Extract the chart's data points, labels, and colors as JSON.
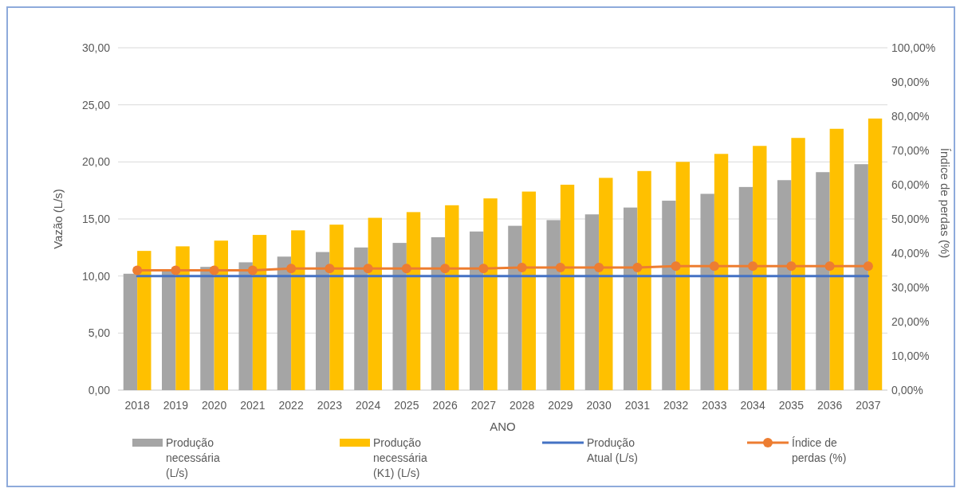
{
  "chart_data": {
    "type": "bar",
    "xlabel": "ANO",
    "ylabel": "Vazão (L/s)",
    "y2label": "Índice de perdas (%)",
    "categories": [
      "2018",
      "2019",
      "2020",
      "2021",
      "2022",
      "2023",
      "2024",
      "2025",
      "2026",
      "2027",
      "2028",
      "2029",
      "2030",
      "2031",
      "2032",
      "2033",
      "2034",
      "2035",
      "2036",
      "2037"
    ],
    "ylim": [
      0,
      30
    ],
    "yticks": [
      {
        "value": 0,
        "label": "0,00"
      },
      {
        "value": 5,
        "label": "5,00"
      },
      {
        "value": 10,
        "label": "10,00"
      },
      {
        "value": 15,
        "label": "15,00"
      },
      {
        "value": 20,
        "label": "20,00"
      },
      {
        "value": 25,
        "label": "25,00"
      },
      {
        "value": 30,
        "label": "30,00"
      }
    ],
    "y2lim": [
      0,
      100
    ],
    "y2ticks": [
      {
        "value": 0,
        "label": "0,00%"
      },
      {
        "value": 10,
        "label": "10,00%"
      },
      {
        "value": 20,
        "label": "20,00%"
      },
      {
        "value": 30,
        "label": "30,00%"
      },
      {
        "value": 40,
        "label": "40,00%"
      },
      {
        "value": 50,
        "label": "50,00%"
      },
      {
        "value": 60,
        "label": "60,00%"
      },
      {
        "value": 70,
        "label": "70,00%"
      },
      {
        "value": 80,
        "label": "80,00%"
      },
      {
        "value": 90,
        "label": "90,00%"
      },
      {
        "value": 100,
        "label": "100,00%"
      }
    ],
    "grid": "y",
    "legend": "bottom",
    "series": [
      {
        "name": "Produção necessária (L/s)",
        "color": "#a5a5a5",
        "values": [
          10.2,
          10.5,
          10.8,
          11.2,
          11.7,
          12.1,
          12.5,
          12.9,
          13.4,
          13.9,
          14.4,
          14.9,
          15.4,
          16.0,
          16.6,
          17.2,
          17.8,
          18.4,
          19.1,
          19.8
        ]
      },
      {
        "name": "Produção necessária (K1) (L/s)",
        "color": "#ffc000",
        "values": [
          12.2,
          12.6,
          13.1,
          13.6,
          14.0,
          14.5,
          15.1,
          15.6,
          16.2,
          16.8,
          17.4,
          18.0,
          18.6,
          19.2,
          20.0,
          20.7,
          21.4,
          22.1,
          22.9,
          23.8
        ]
      },
      {
        "name": "Produção Atual (L/s)",
        "type": "line",
        "color": "#4472c4",
        "marker": "none",
        "values": [
          10,
          10,
          10,
          10,
          10,
          10,
          10,
          10,
          10,
          10,
          10,
          10,
          10,
          10,
          10,
          10,
          10,
          10,
          10,
          10
        ]
      },
      {
        "name": "Índice de perdas (%)",
        "type": "line",
        "axis": "y2",
        "color": "#ed7d31",
        "marker": "circle",
        "values": [
          35.0,
          35.0,
          35.0,
          35.0,
          35.5,
          35.5,
          35.5,
          35.5,
          35.5,
          35.5,
          35.8,
          35.8,
          35.8,
          35.8,
          36.2,
          36.2,
          36.2,
          36.2,
          36.2,
          36.2
        ]
      }
    ]
  }
}
